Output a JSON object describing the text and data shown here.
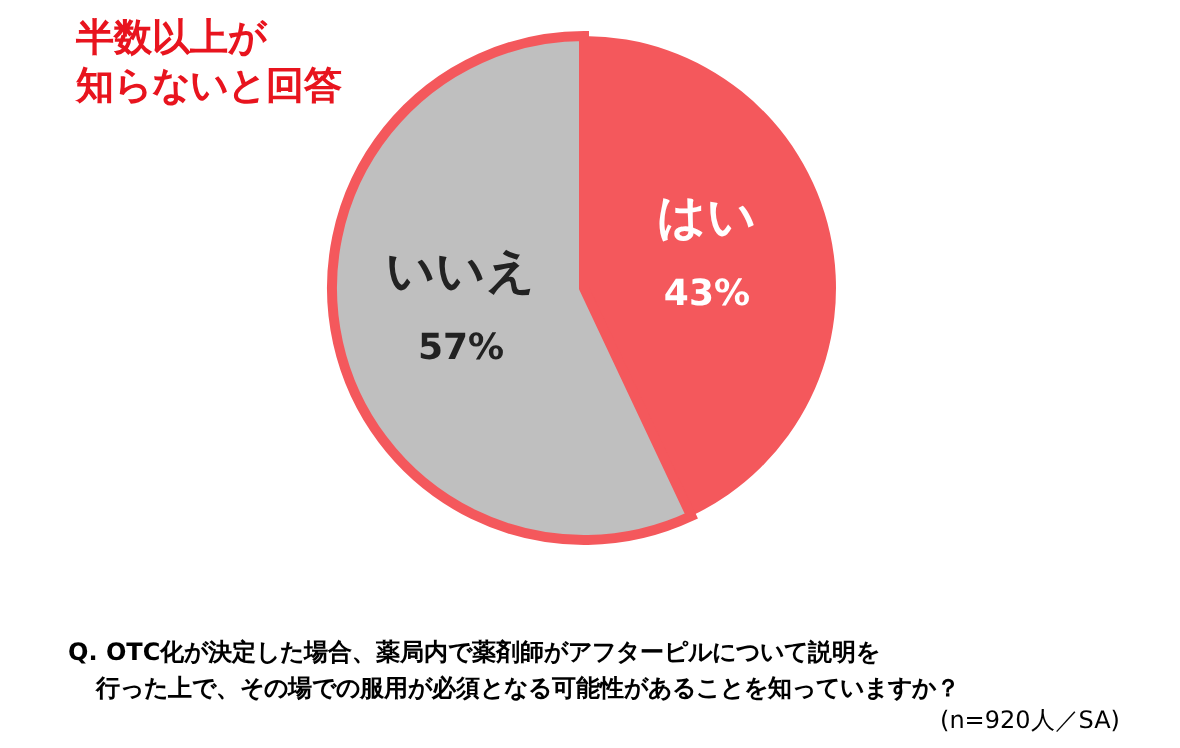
{
  "chart_data": {
    "type": "pie",
    "categories": [
      "はい",
      "いいえ"
    ],
    "values": [
      43,
      57
    ],
    "colors": [
      "#f4585c",
      "#bfbfbf"
    ],
    "value_labels": [
      "43%",
      "57%"
    ],
    "annotations": [
      "半数以上が",
      "知らないと回答",
      "Q. OTC化が決定した場合、薬局内で薬剤師がアフターピルについて説明を",
      "行った上で、その場での服用が必須となる可能性があることを知っていますか？",
      "(n=920人／SA)"
    ]
  }
}
